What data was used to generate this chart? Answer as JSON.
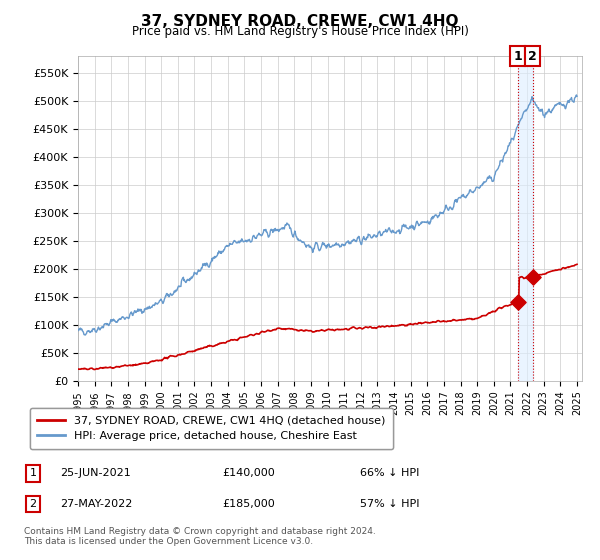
{
  "title": "37, SYDNEY ROAD, CREWE, CW1 4HQ",
  "subtitle": "Price paid vs. HM Land Registry's House Price Index (HPI)",
  "ylabel_ticks": [
    "£0",
    "£50K",
    "£100K",
    "£150K",
    "£200K",
    "£250K",
    "£300K",
    "£350K",
    "£400K",
    "£450K",
    "£500K",
    "£550K"
  ],
  "ytick_values": [
    0,
    50000,
    100000,
    150000,
    200000,
    250000,
    300000,
    350000,
    400000,
    450000,
    500000,
    550000
  ],
  "ylim": [
    0,
    580000
  ],
  "xlim_start": 1995.3,
  "xlim_end": 2025.3,
  "legend_line1": "37, SYDNEY ROAD, CREWE, CW1 4HQ (detached house)",
  "legend_line2": "HPI: Average price, detached house, Cheshire East",
  "annotation1_label": "1",
  "annotation1_date": "25-JUN-2021",
  "annotation1_price": "£140,000",
  "annotation1_hpi": "66% ↓ HPI",
  "annotation2_label": "2",
  "annotation2_date": "27-MAY-2022",
  "annotation2_price": "£185,000",
  "annotation2_hpi": "57% ↓ HPI",
  "footer": "Contains HM Land Registry data © Crown copyright and database right 2024.\nThis data is licensed under the Open Government Licence v3.0.",
  "red_color": "#cc0000",
  "blue_color": "#6699cc",
  "vline1_x": 2021.48,
  "vline2_x": 2022.37,
  "point1_x": 2021.48,
  "point1_y": 140000,
  "point2_x": 2022.37,
  "point2_y": 185000,
  "background_color": "#ffffff",
  "grid_color": "#cccccc",
  "shade_color": "#ddeeff"
}
